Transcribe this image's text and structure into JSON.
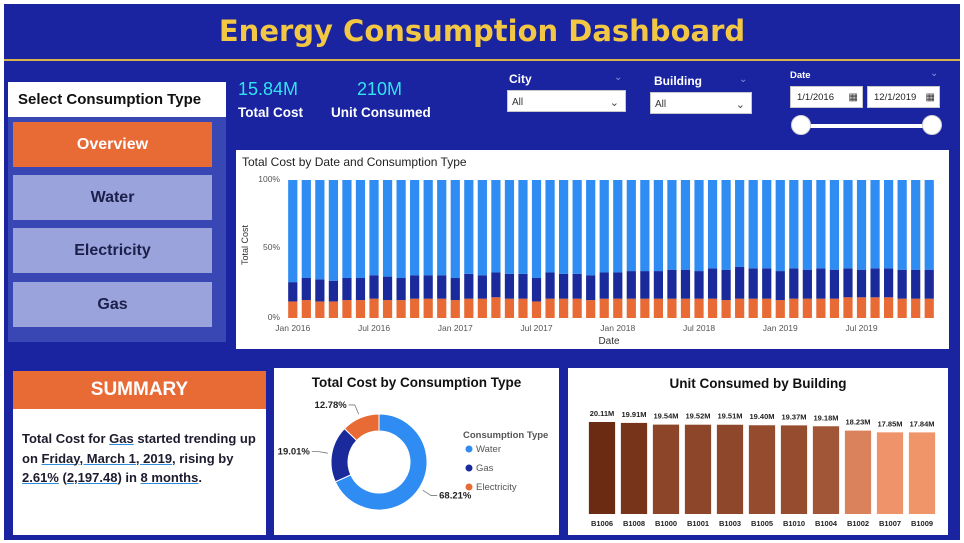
{
  "title": "Energy Consumption Dashboard",
  "nav": {
    "header": "Select Consumption Type",
    "items": [
      {
        "label": "Overview",
        "active": true
      },
      {
        "label": "Water",
        "active": false
      },
      {
        "label": "Electricity",
        "active": false
      },
      {
        "label": "Gas",
        "active": false
      }
    ]
  },
  "kpis": {
    "total_cost": {
      "value": "15.84M",
      "label": "Total Cost"
    },
    "unit_consumed": {
      "value": "210M",
      "label": "Unit Consumed"
    }
  },
  "filters": {
    "city": {
      "label": "City",
      "value": "All"
    },
    "building": {
      "label": "Building",
      "value": "All"
    },
    "date": {
      "label": "Date",
      "start": "1/1/2016",
      "end": "12/1/2019"
    }
  },
  "summary": {
    "heading": "SUMMARY",
    "parts": {
      "p1": "Total Cost for ",
      "type": "Gas",
      "p2": " started trending up on ",
      "date": "Friday, March 1, 2019",
      "p3": ", rising by ",
      "pct": "2.61%",
      "p4": " (",
      "abs": "2,197.48",
      "p5": ") in ",
      "dur": "8 months",
      "p6": "."
    }
  },
  "colors": {
    "water": "#2f8cf3",
    "gas": "#1a2a9a",
    "electricity": "#e86a35",
    "accent": "#e86a35",
    "background": "#1a23a0",
    "title": "#f2c744"
  },
  "chart_data": [
    {
      "type": "bar",
      "stacked": "100%",
      "title": "Total Cost by Date and Consumption Type",
      "xlabel": "Date",
      "ylabel": "Total Cost",
      "y_ticks": [
        "0%",
        "50%",
        "100%"
      ],
      "x_ticks": [
        "Jan 2016",
        "Jul 2016",
        "Jan 2017",
        "Jul 2017",
        "Jan 2018",
        "Jul 2018",
        "Jan 2019",
        "Jul 2019"
      ],
      "x_tick_index": [
        0,
        6,
        12,
        18,
        24,
        30,
        36,
        42
      ],
      "series_order_bottom_to_top": [
        "Electricity",
        "Gas",
        "Water"
      ],
      "electricity_pct": [
        12,
        13,
        12,
        12,
        13,
        13,
        14,
        13,
        13,
        14,
        14,
        14,
        13,
        14,
        14,
        15,
        14,
        14,
        12,
        14,
        14,
        14,
        13,
        14,
        14,
        14,
        14,
        14,
        14,
        14,
        14,
        14,
        13,
        14,
        14,
        14,
        13,
        14,
        14,
        14,
        14,
        15,
        15,
        15,
        15,
        14,
        14,
        14
      ],
      "gas_pct": [
        14,
        16,
        16,
        15,
        16,
        16,
        17,
        17,
        16,
        17,
        17,
        17,
        16,
        18,
        17,
        18,
        18,
        18,
        17,
        19,
        18,
        18,
        18,
        19,
        19,
        20,
        20,
        20,
        21,
        21,
        20,
        22,
        22,
        23,
        22,
        22,
        21,
        22,
        21,
        22,
        21,
        21,
        20,
        21,
        21,
        21,
        21,
        21
      ]
    },
    {
      "type": "pie",
      "donut": true,
      "title": "Total Cost by Consumption Type",
      "legend_title": "Consumption Type",
      "legend_position": "right",
      "labels": [
        "Water",
        "Gas",
        "Electricity"
      ],
      "values": [
        68.21,
        19.01,
        12.78
      ],
      "value_labels": [
        "68.21%",
        "19.01%",
        "12.78%"
      ]
    },
    {
      "type": "bar",
      "title": "Unit Consumed by Building",
      "categories": [
        "B1006",
        "B1008",
        "B1000",
        "B1001",
        "B1003",
        "B1005",
        "B1010",
        "B1004",
        "B1002",
        "B1007",
        "B1009"
      ],
      "values": [
        20.11,
        19.91,
        19.54,
        19.52,
        19.51,
        19.4,
        19.37,
        19.18,
        18.23,
        17.85,
        17.84
      ],
      "value_labels": [
        "20.11M",
        "19.91M",
        "19.54M",
        "19.52M",
        "19.51M",
        "19.40M",
        "19.37M",
        "19.18M",
        "18.23M",
        "17.85M",
        "17.84M"
      ],
      "unit": "M",
      "color_gradient": [
        "#6b2b13",
        "#f0946a"
      ]
    }
  ]
}
